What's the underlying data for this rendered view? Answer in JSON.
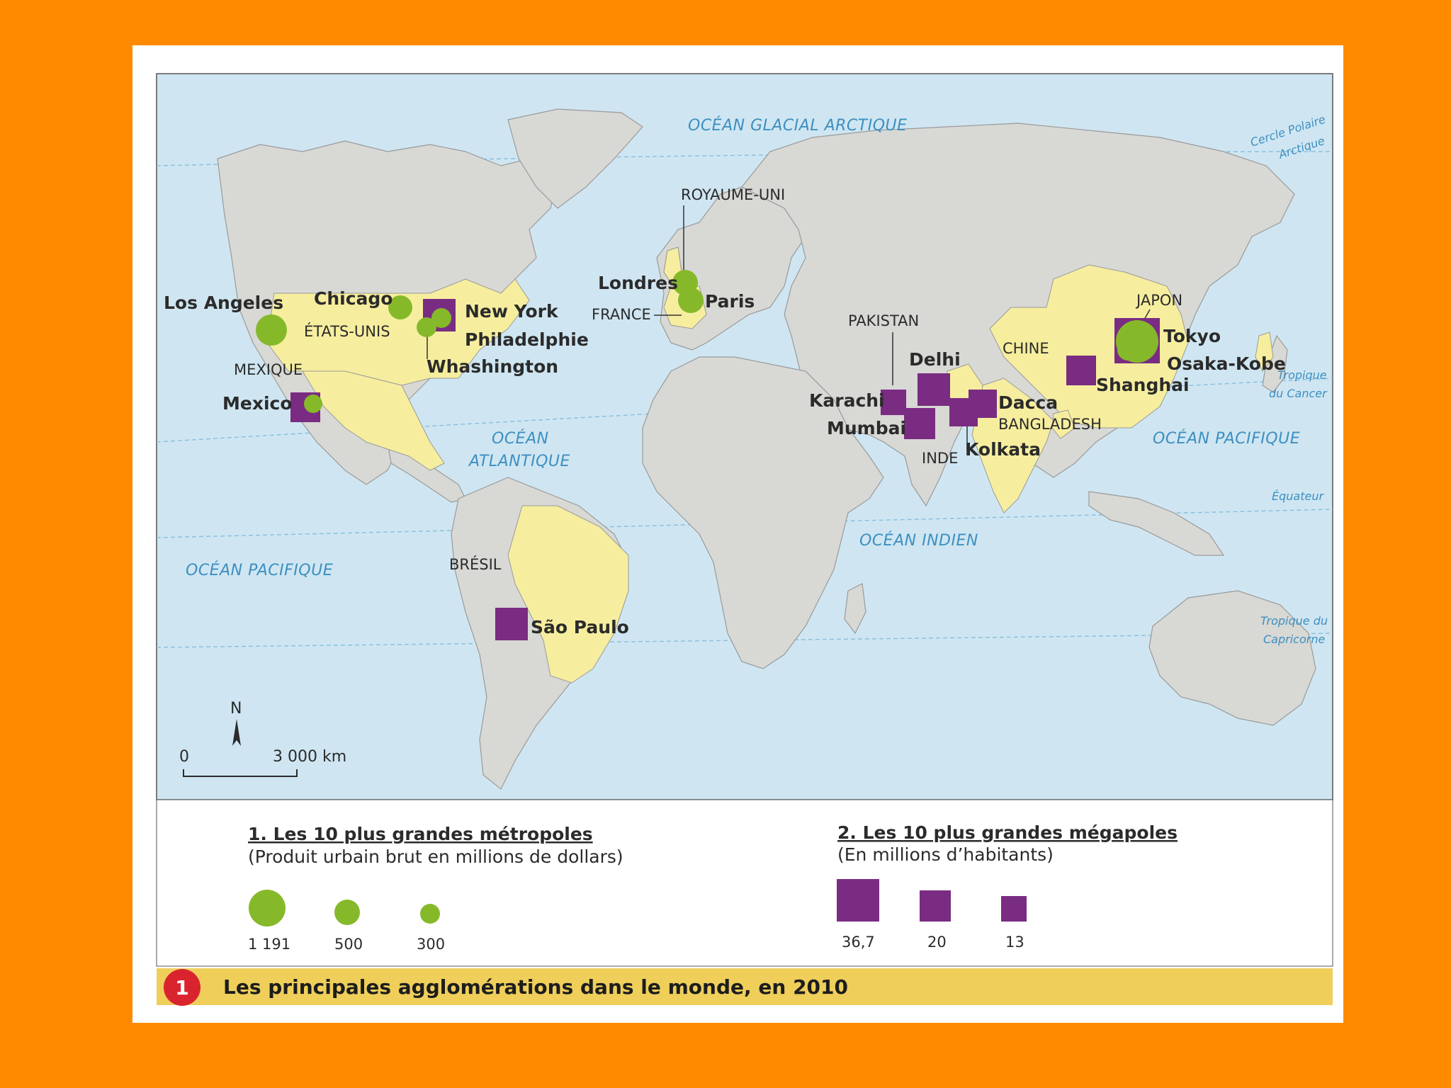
{
  "map": {
    "oceans": {
      "arctic": "OCÉAN GLACIAL ARCTIQUE",
      "atlantic_1": "OCÉAN",
      "atlantic_2": "ATLANTIQUE",
      "pacific_west": "OCÉAN PACIFIQUE",
      "pacific_east": "OCÉAN PACIFIQUE",
      "indian": "OCÉAN INDIEN"
    },
    "lines": {
      "arctic_circle_1": "Cercle Polaire",
      "arctic_circle_2": "Arctique",
      "cancer_1": "Tropique",
      "cancer_2": "du Cancer",
      "equator": "Équateur",
      "capricorn_1": "Tropique du",
      "capricorn_2": "Capricorne"
    },
    "countries": {
      "uk": "ROYAUME-UNI",
      "france": "FRANCE",
      "usa": "ÉTATS-UNIS",
      "mexico": "MEXIQUE",
      "brazil": "BRÉSIL",
      "pakistan": "PAKISTAN",
      "china": "CHINE",
      "japan": "JAPON",
      "bangladesh": "BANGLADESH",
      "india": "INDE"
    },
    "cities": {
      "los_angeles": "Los Angeles",
      "chicago": "Chicago",
      "new_york": "New York",
      "philadelphie": "Philadelphie",
      "washington": "Whashington",
      "mexico": "Mexico",
      "londres": "Londres",
      "paris": "Paris",
      "sao_paulo": "São Paulo",
      "delhi": "Delhi",
      "karachi": "Karachi",
      "mumbai": "Mumbai",
      "dacca": "Dacca",
      "kolkata": "Kolkata",
      "shanghai": "Shanghai",
      "tokyo": "Tokyo",
      "osaka_kobe": "Osaka-Kobe"
    },
    "compass": "N",
    "scale": {
      "zero": "0",
      "distance": "3 000 km"
    }
  },
  "legend": {
    "metropoles_title": "1. Les 10 plus grandes métropoles",
    "metropoles_subtitle": "(Produit urbain brut en millions de dollars)",
    "metropoles_values": [
      "1 191",
      "500",
      "300"
    ],
    "megapoles_title": "2. Les 10 plus grandes mégapoles",
    "megapoles_subtitle": "(En millions d’habitants)",
    "megapoles_values": [
      "36,7",
      "20",
      "13"
    ]
  },
  "caption": {
    "number": "1",
    "title": "Les principales agglomérations dans le monde, en 2010"
  },
  "colors": {
    "background": "#FF8A00",
    "ocean": "#CFE6F2",
    "land": "#D8D8D5",
    "highlight_country": "#F6EE9E",
    "metropole": "#86B929",
    "megapole": "#7A2C82",
    "ocean_text": "#3E8FC0",
    "caption_badge": "#D92430",
    "caption_band": "#EFCF5A"
  }
}
